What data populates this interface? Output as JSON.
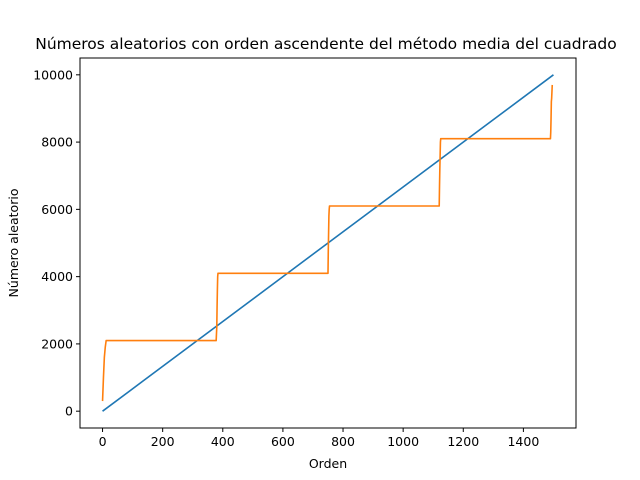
{
  "chart_data": {
    "type": "line",
    "title": "Números aleatorios con orden ascendente del método media del cuadrado",
    "xlabel": "Orden",
    "ylabel": "Número aleatorio",
    "xlim": [
      -75,
      1575
    ],
    "ylim": [
      -500,
      10500
    ],
    "xticks": [
      0,
      200,
      400,
      600,
      800,
      1000,
      1200,
      1400
    ],
    "yticks": [
      0,
      2000,
      4000,
      6000,
      8000,
      10000
    ],
    "grid": false,
    "colors": {
      "series_1": "#1f77b4",
      "series_2": "#ff7f0e"
    },
    "series": [
      {
        "x": [
          0,
          1500
        ],
        "y": [
          0,
          10000
        ]
      },
      {
        "x": [
          0,
          3,
          6,
          9,
          12,
          378,
          380,
          381,
          382,
          383,
          384,
          750,
          751,
          752,
          753,
          754,
          755,
          1120,
          1121,
          1122,
          1123,
          1124,
          1125,
          1490,
          1491,
          1492,
          1493,
          1494,
          1495,
          1496
        ],
        "y": [
          300,
          1000,
          1600,
          1900,
          2100,
          2100,
          2500,
          3100,
          3600,
          4000,
          4100,
          4100,
          4800,
          5300,
          5800,
          6000,
          6100,
          6100,
          6700,
          7200,
          7600,
          8000,
          8100,
          8100,
          8300,
          8700,
          9200,
          9300,
          9500,
          9700
        ]
      }
    ]
  }
}
